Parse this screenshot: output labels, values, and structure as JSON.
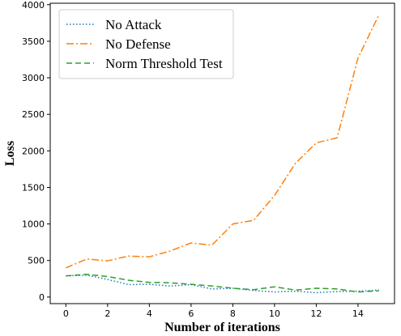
{
  "chart_data": {
    "type": "line",
    "title": "",
    "xlabel": "Number of iterations",
    "ylabel": "Loss",
    "xlim": [
      -0.75,
      15.75
    ],
    "ylim": [
      -90,
      4020
    ],
    "xticks": [
      0,
      2,
      4,
      6,
      8,
      10,
      12,
      14
    ],
    "yticks": [
      0,
      500,
      1000,
      1500,
      2000,
      2500,
      3000,
      3500,
      4000
    ],
    "grid": false,
    "legend_position": "top-left",
    "x": [
      0,
      1,
      2,
      3,
      4,
      5,
      6,
      7,
      8,
      9,
      10,
      11,
      12,
      13,
      14,
      15
    ],
    "series": [
      {
        "name": "No Attack",
        "color": "#1f77b4",
        "linestyle": "dotted",
        "values": [
          290,
          300,
          240,
          170,
          175,
          150,
          170,
          110,
          120,
          90,
          70,
          80,
          60,
          75,
          80,
          95
        ]
      },
      {
        "name": "No Defense",
        "color": "#ff7f0e",
        "linestyle": "dashdot",
        "values": [
          400,
          520,
          495,
          560,
          550,
          630,
          740,
          710,
          1000,
          1050,
          1390,
          1830,
          2110,
          2180,
          3270,
          3860
        ]
      },
      {
        "name": "Norm Threshold Test",
        "color": "#2ca02c",
        "linestyle": "dashed",
        "values": [
          290,
          310,
          280,
          230,
          200,
          195,
          175,
          150,
          120,
          100,
          140,
          95,
          120,
          110,
          70,
          85
        ]
      }
    ]
  }
}
